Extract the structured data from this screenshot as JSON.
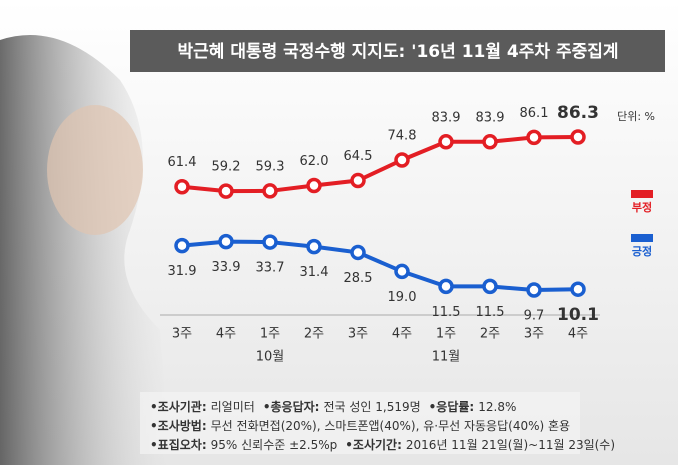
{
  "chart_data": {
    "type": "line",
    "title": "박근혜 대통령 국정수행 지지도: '16년 11월 4주차 주중집계",
    "unit": "단위: %",
    "categories": [
      "3주",
      "4주",
      "1주",
      "2주",
      "3주",
      "4주",
      "1주",
      "2주",
      "3주",
      "4주"
    ],
    "months": [
      null,
      null,
      "10월",
      null,
      null,
      null,
      "11월",
      null,
      null,
      null
    ],
    "series": [
      {
        "name": "부정",
        "color": "#e31e24",
        "values": [
          61.4,
          59.2,
          59.3,
          62.0,
          64.5,
          74.8,
          83.9,
          83.9,
          86.1,
          86.3
        ],
        "value_labels": [
          "61.4",
          "59.2",
          "59.3",
          "62.0",
          "64.5",
          "74.8",
          "83.9",
          "83.9",
          "86.1",
          "86.3"
        ]
      },
      {
        "name": "긍정",
        "color": "#1a5fd0",
        "values": [
          31.9,
          33.9,
          33.7,
          31.4,
          28.5,
          19.0,
          11.5,
          11.5,
          9.7,
          10.1
        ],
        "value_labels": [
          "31.9",
          "33.9",
          "33.7",
          "31.4",
          "28.5",
          "19.0",
          "11.5",
          "11.5",
          "9.7",
          "10.1"
        ]
      }
    ],
    "highlight_last": true,
    "notes": [
      [
        {
          "label": "•조사기관:",
          "text": "리얼미터"
        },
        {
          "label": "•총응답자:",
          "text": "전국 성인 1,519명"
        },
        {
          "label": "•응답률:",
          "text": "12.8%"
        }
      ],
      [
        {
          "label": "•조사방법:",
          "text": "무선 전화면접(20%), 스마트폰앱(40%), 유·무선 자동응답(40%) 혼용"
        }
      ],
      [
        {
          "label": "•표집오차:",
          "text": "95% 신뢰수준 ±2.5%p"
        },
        {
          "label": "•조사기간:",
          "text": "2016년 11월 21일(월)~11월 23일(수)"
        }
      ]
    ]
  }
}
